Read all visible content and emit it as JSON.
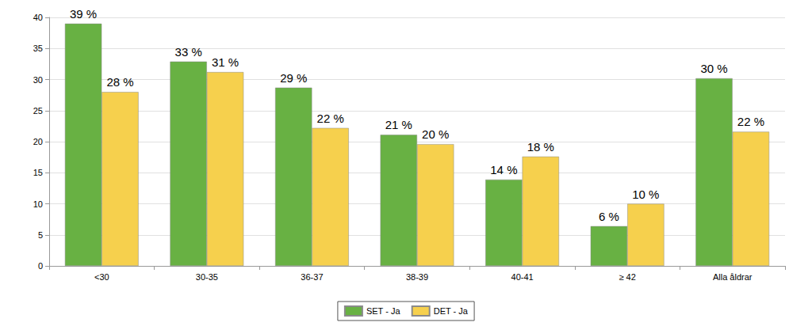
{
  "chart_data": {
    "type": "bar",
    "categories": [
      "<30",
      "30-35",
      "36-37",
      "38-39",
      "40-41",
      "≥ 42",
      "Alla åldrar"
    ],
    "series": [
      {
        "name": "SET - Ja",
        "color": "#68b143",
        "values": [
          39.0,
          32.9,
          28.7,
          21.1,
          13.9,
          6.4,
          30.2
        ],
        "value_labels": [
          "39 %",
          "33 %",
          "29 %",
          "21 %",
          "14 %",
          "6 %",
          "30 %"
        ]
      },
      {
        "name": "DET - Ja",
        "color": "#f6d04d",
        "values": [
          28.0,
          31.2,
          22.2,
          19.6,
          17.6,
          10.0,
          21.6
        ],
        "value_labels": [
          "28 %",
          "31 %",
          "22 %",
          "20 %",
          "18 %",
          "10 %",
          "22 %"
        ]
      }
    ],
    "ylim": [
      0,
      40
    ],
    "yticks": [
      0,
      5,
      10,
      15,
      20,
      25,
      30,
      35,
      40
    ],
    "grid": true,
    "legend": "bottom",
    "data_labels": true
  }
}
